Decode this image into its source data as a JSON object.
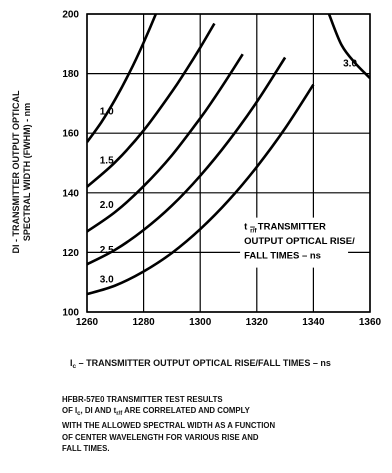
{
  "chart_data": {
    "type": "line",
    "xlabel": "",
    "ylabel": "DI - TRANSMITTER OUTPUT OPTICAL SPECTRAL WIDTH (FWHM) - nm",
    "ylabel_lines": [
      "DI - TRANSMITTER OUTPUT OPTICAL",
      "SPECTRAL WIDTH (FWHM) - nm"
    ],
    "xlim": [
      1260,
      1360
    ],
    "ylim": [
      100,
      200
    ],
    "x_ticks": [
      1260,
      1280,
      1300,
      1320,
      1340,
      1360
    ],
    "y_ticks": [
      100,
      120,
      140,
      160,
      180,
      200
    ],
    "grid": true,
    "series": [
      {
        "name": "1.0",
        "x": [
          1260,
          1265,
          1270,
          1275,
          1280,
          1285,
          1290
        ],
        "y": [
          157,
          163.6,
          171.4,
          180.3,
          190.4,
          201.6,
          214
        ]
      },
      {
        "name": "1.5",
        "x": [
          1260,
          1270,
          1280,
          1290,
          1295,
          1300,
          1305
        ],
        "y": [
          142,
          150.3,
          160.9,
          173.9,
          181.1,
          188.7,
          196.8
        ]
      },
      {
        "name": "2.0",
        "x": [
          1260,
          1270,
          1280,
          1290,
          1300,
          1305,
          1310,
          1315
        ],
        "y": [
          127,
          133.6,
          142.2,
          152.6,
          165,
          171.8,
          179,
          186.5
        ]
      },
      {
        "name": "2.5",
        "x": [
          1260,
          1270,
          1280,
          1290,
          1300,
          1310,
          1320,
          1330
        ],
        "y": [
          116,
          120.9,
          127.5,
          135.7,
          145.7,
          157.3,
          170.5,
          185.4
        ]
      },
      {
        "name": "3.0",
        "x": [
          1260,
          1270,
          1280,
          1290,
          1300,
          1310,
          1320,
          1330,
          1340
        ],
        "y": [
          106,
          108.9,
          113.6,
          119.8,
          127.8,
          137.4,
          148.7,
          161.6,
          176.3
        ]
      },
      {
        "name": "3.0",
        "x": [
          1345.5,
          1350,
          1355,
          1360
        ],
        "y": [
          200,
          189.5,
          183.3,
          178.5
        ]
      }
    ],
    "curve_labels": [
      {
        "text": "1.0",
        "x": 1264.5,
        "y": 167.5
      },
      {
        "text": "1.5",
        "x": 1264.5,
        "y": 151
      },
      {
        "text": "2.0",
        "x": 1264.5,
        "y": 136
      },
      {
        "text": "2.5",
        "x": 1264.5,
        "y": 121
      },
      {
        "text": "3.0",
        "x": 1264.5,
        "y": 111
      },
      {
        "text": "3.0",
        "x": 1350.5,
        "y": 183.5
      }
    ],
    "annotation": {
      "lines": [
        "t   – TRANSMITTER",
        "OUTPUT OPTICAL RISE/",
        "FALL TIMES – ns"
      ],
      "subscript": "r/f",
      "x": 1315.5,
      "y": 131
    }
  },
  "xlabel_main": "I",
  "xlabel_sub": "c",
  "xlabel_rest": " – TRANSMITTER OUTPUT OPTICAL RISE/FALL TIMES – ns",
  "caption": {
    "line1": "HFBR-57E0 TRANSMITTER TEST RESULTS",
    "line2_a": "OF  I",
    "line2_sub1": "c",
    "line2_b": ", DI  AND t",
    "line2_sub2": "r/f",
    "line2_c": "  ARE CORRELATED AND  COMPLY",
    "line3": "WITH THE ALLOWED SPECTRAL WIDTH AS A FUNCTION",
    "line4": "OF CENTER WAVELENGTH FOR VARIOUS RISE AND",
    "line5": "FALL TIMES."
  }
}
